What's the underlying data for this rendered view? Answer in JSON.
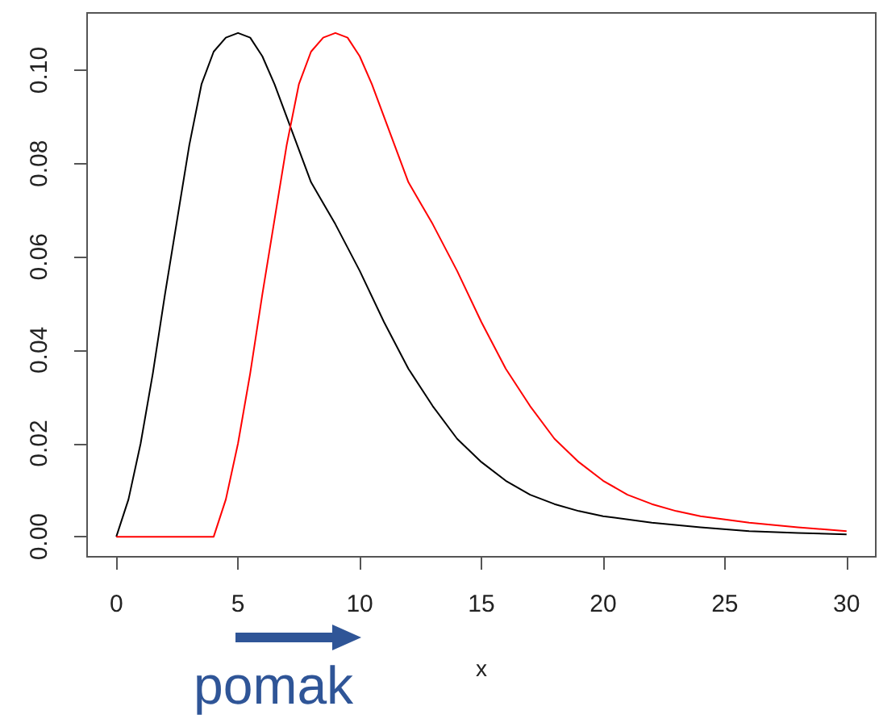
{
  "chart_data": {
    "type": "line",
    "xlabel": "x",
    "annotations": [
      "pomak"
    ],
    "xlim": [
      -1.2,
      31.2
    ],
    "ylim": [
      -0.0043,
      0.1123
    ],
    "xticks": [
      0,
      5,
      10,
      15,
      20,
      25,
      30
    ],
    "yticks": [
      {
        "value": 0,
        "label": "0.00"
      },
      {
        "value": 0.02,
        "label": "0.02"
      },
      {
        "value": 0.04,
        "label": "0.04"
      },
      {
        "value": 0.06,
        "label": "0.06"
      },
      {
        "value": 0.08,
        "label": "0.08"
      },
      {
        "value": 0.1,
        "label": "0.10"
      }
    ],
    "grid": false,
    "marker": "none",
    "line_style": "solid",
    "series": [
      {
        "color": "#000000",
        "x": [
          0,
          0.5,
          1,
          1.5,
          2,
          2.5,
          3,
          3.5,
          4,
          4.5,
          5,
          5.5,
          6,
          6.5,
          7,
          8,
          9,
          10,
          11,
          12,
          13,
          14,
          15,
          16,
          17,
          18,
          19,
          20,
          22,
          24,
          26,
          28,
          30
        ],
        "values": [
          0,
          0.008,
          0.02,
          0.035,
          0.052,
          0.068,
          0.084,
          0.097,
          0.104,
          0.107,
          0.108,
          0.107,
          0.103,
          0.097,
          0.09,
          0.076,
          0.067,
          0.057,
          0.046,
          0.036,
          0.028,
          0.021,
          0.016,
          0.012,
          0.009,
          0.007,
          0.0055,
          0.0044,
          0.003,
          0.002,
          0.0012,
          0.0008,
          0.0005
        ]
      },
      {
        "color": "#ff0000",
        "x": [
          0,
          4,
          4.5,
          5,
          5.5,
          6,
          6.5,
          7,
          7.5,
          8,
          8.5,
          9,
          9.5,
          10,
          10.5,
          11,
          12,
          13,
          14,
          15,
          16,
          17,
          18,
          19,
          20,
          21,
          22,
          23,
          24,
          26,
          28,
          30
        ],
        "values": [
          0,
          0,
          0.008,
          0.02,
          0.035,
          0.052,
          0.068,
          0.084,
          0.097,
          0.104,
          0.107,
          0.108,
          0.107,
          0.103,
          0.097,
          0.09,
          0.076,
          0.067,
          0.057,
          0.046,
          0.036,
          0.028,
          0.021,
          0.016,
          0.012,
          0.009,
          0.007,
          0.0055,
          0.0044,
          0.003,
          0.002,
          0.0012
        ]
      }
    ]
  }
}
